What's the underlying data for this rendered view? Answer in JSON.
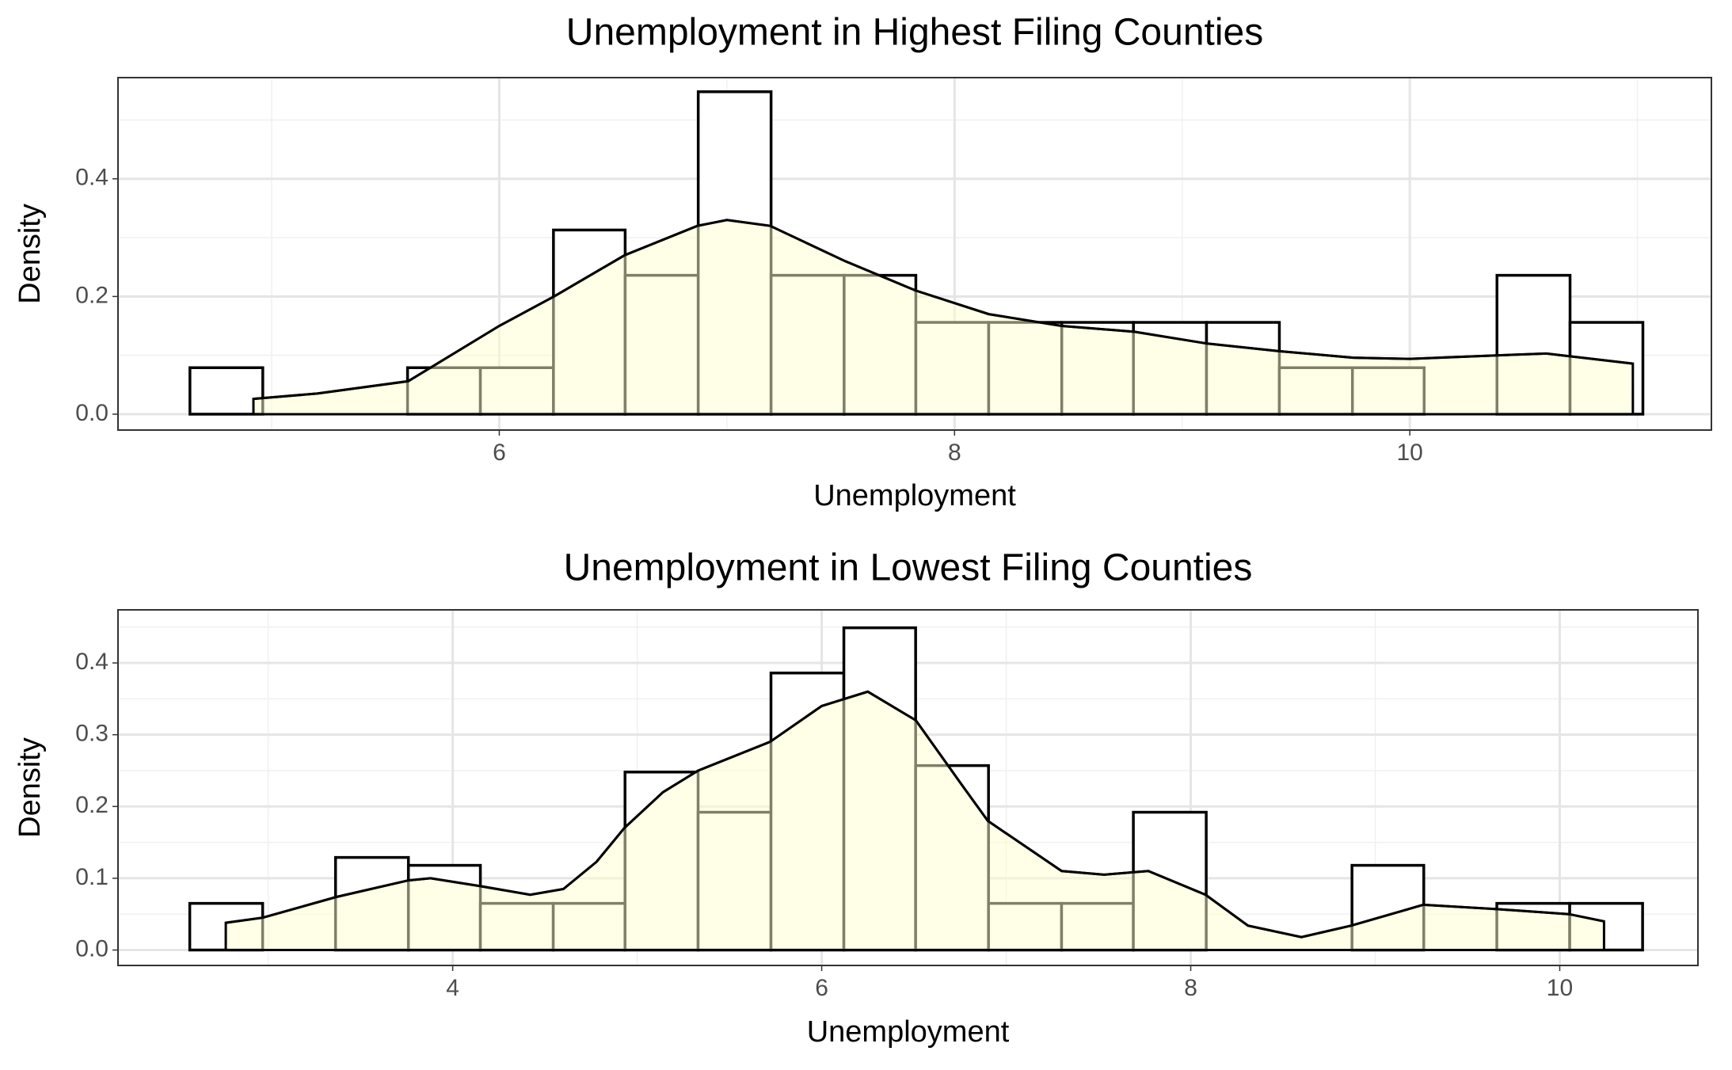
{
  "chart_data": [
    {
      "type": "histogram",
      "title": "Unemployment in Highest Filing Counties",
      "x_label": "Unemployment",
      "y_label": "Density",
      "bins": [
        4.641,
        4.961,
        5.282,
        5.597,
        5.917,
        6.238,
        6.553,
        6.874,
        7.194,
        7.515,
        7.83,
        8.15,
        8.471,
        8.786,
        9.107,
        9.427,
        9.748,
        10.063,
        10.383,
        10.704,
        11.024
      ],
      "values": [
        0.079,
        0,
        0,
        0.079,
        0.079,
        0.313,
        0.236,
        0.548,
        0.236,
        0.236,
        0.156,
        0.156,
        0.156,
        0.156,
        0.156,
        0.079,
        0.079,
        0,
        0.236,
        0.156
      ],
      "density": {
        "x": [
          4.92,
          5.2,
          5.6,
          6.0,
          6.24,
          6.55,
          6.87,
          7.0,
          7.19,
          7.52,
          7.83,
          8.15,
          8.47,
          8.79,
          9.11,
          9.43,
          9.75,
          10.0,
          10.38,
          10.6,
          10.98
        ],
        "y": [
          0.026,
          0.035,
          0.056,
          0.15,
          0.2,
          0.27,
          0.32,
          0.33,
          0.32,
          0.26,
          0.21,
          0.17,
          0.15,
          0.14,
          0.12,
          0.107,
          0.096,
          0.094,
          0.1,
          0.103,
          0.086
        ]
      },
      "bar_color": "#ffffff",
      "edge_color": "#000000",
      "density_color": "#ffffd0",
      "xlim": [
        4.325,
        11.325
      ],
      "xticks": [
        6,
        8,
        10
      ],
      "ylim": [
        -0.027,
        0.572
      ],
      "yticks": [
        {
          "value": 0,
          "label": "0.0"
        },
        0.2,
        0.4
      ],
      "grid": true
    },
    {
      "type": "histogram",
      "title": "Unemployment in Lowest Filing Counties",
      "x_label": "Unemployment",
      "y_label": "Density",
      "bins": [
        2.575,
        2.97,
        3.365,
        3.76,
        4.15,
        4.545,
        4.934,
        5.33,
        5.725,
        6.12,
        6.509,
        6.904,
        7.3,
        7.689,
        8.084,
        8.479,
        8.874,
        9.263,
        9.659,
        10.054,
        10.449
      ],
      "values": [
        0.065,
        0,
        0.129,
        0.118,
        0.065,
        0.065,
        0.248,
        0.192,
        0.386,
        0.449,
        0.257,
        0.065,
        0.065,
        0.192,
        0,
        0,
        0.118,
        0,
        0.065,
        0.065
      ],
      "density": {
        "x": [
          2.77,
          2.97,
          3.37,
          3.76,
          3.88,
          4.15,
          4.42,
          4.6,
          4.78,
          4.93,
          5.14,
          5.33,
          5.72,
          6.0,
          6.25,
          6.51,
          6.76,
          6.9,
          7.3,
          7.53,
          7.77,
          8.08,
          8.31,
          8.6,
          8.87,
          9.26,
          9.66,
          10.05,
          10.24
        ],
        "y": [
          0.038,
          0.045,
          0.074,
          0.097,
          0.1,
          0.089,
          0.077,
          0.085,
          0.123,
          0.17,
          0.22,
          0.25,
          0.29,
          0.34,
          0.36,
          0.32,
          0.23,
          0.18,
          0.11,
          0.105,
          0.11,
          0.077,
          0.034,
          0.018,
          0.034,
          0.063,
          0.057,
          0.05,
          0.04
        ]
      },
      "bar_color": "#ffffff",
      "edge_color": "#000000",
      "density_color": "#ffffd0",
      "xlim": [
        2.186,
        10.749
      ],
      "xticks": [
        4,
        6,
        8,
        10
      ],
      "ylim": [
        -0.0215,
        0.474
      ],
      "yticks": [
        {
          "value": 0,
          "label": "0.0"
        },
        0.1,
        0.2,
        0.3,
        0.4
      ],
      "grid": true
    }
  ]
}
